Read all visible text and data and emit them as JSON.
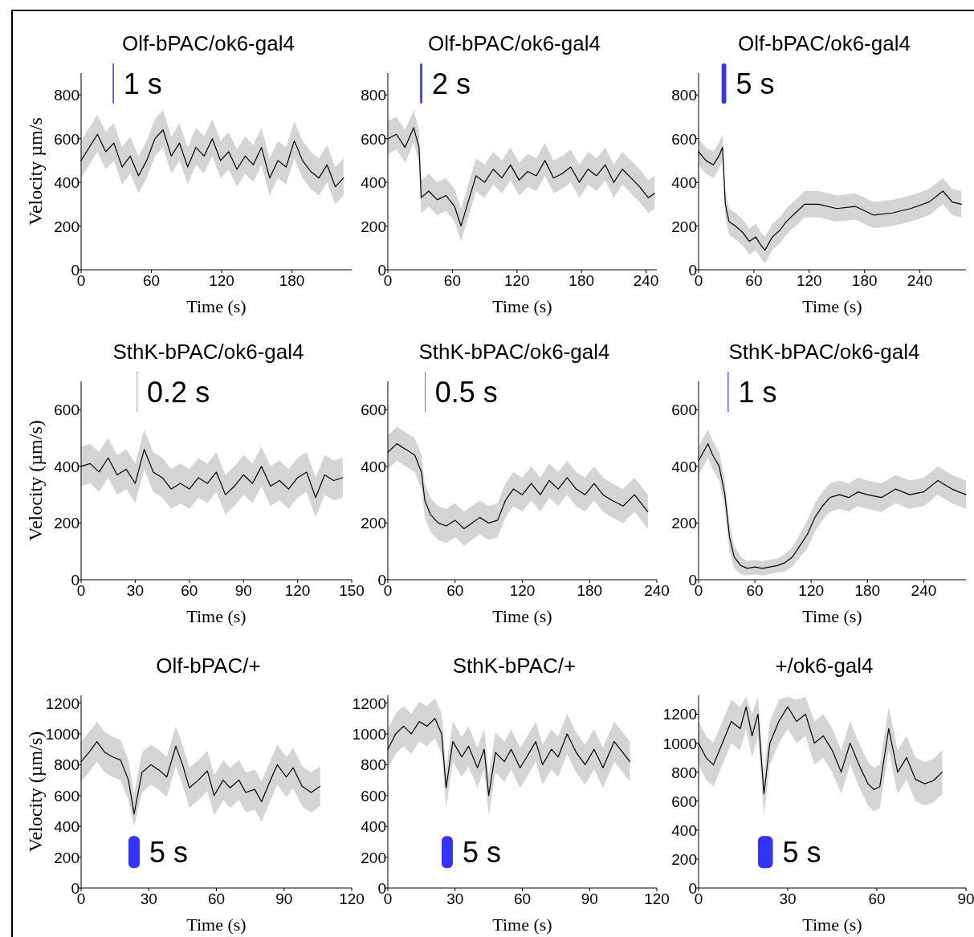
{
  "chart_data": [
    {
      "type": "line",
      "title": "Olf-bPAC/ok6-gal4",
      "xlabel": "Time (s)",
      "ylabel": "Velocity µm/s",
      "xlim": [
        0,
        231
      ],
      "xticks": [
        0,
        60,
        120,
        180
      ],
      "ylim": [
        0,
        900
      ],
      "yticks": [
        0,
        200,
        400,
        600,
        800
      ],
      "bands": [
        {
          "axis": "x",
          "from": 27,
          "to": 28,
          "label": "1 s",
          "color": "#3333ff"
        }
      ],
      "series": [
        {
          "color": "#000000",
          "x": [
            0,
            7,
            14,
            21,
            28,
            35,
            42,
            49,
            56,
            63,
            70,
            77,
            84,
            91,
            98,
            105,
            112,
            119,
            126,
            133,
            140,
            147,
            154,
            161,
            168,
            175,
            182,
            189,
            196,
            203,
            210,
            217,
            224
          ],
          "values": [
            500,
            560,
            620,
            540,
            580,
            470,
            520,
            430,
            500,
            600,
            640,
            520,
            580,
            470,
            560,
            520,
            600,
            500,
            540,
            460,
            520,
            480,
            560,
            420,
            500,
            470,
            590,
            500,
            450,
            420,
            480,
            380,
            420
          ],
          "lower": [
            420,
            480,
            540,
            460,
            500,
            390,
            440,
            350,
            420,
            520,
            560,
            440,
            500,
            390,
            480,
            440,
            520,
            420,
            460,
            380,
            440,
            400,
            480,
            340,
            420,
            390,
            510,
            420,
            370,
            340,
            400,
            300,
            340
          ],
          "upper": [
            590,
            650,
            710,
            630,
            670,
            560,
            610,
            520,
            590,
            690,
            730,
            610,
            670,
            560,
            650,
            610,
            690,
            590,
            630,
            550,
            610,
            570,
            650,
            510,
            590,
            560,
            680,
            590,
            540,
            510,
            570,
            470,
            510
          ]
        }
      ]
    },
    {
      "type": "line",
      "title": "Olf-bPAC/ok6-gal4",
      "xlabel": "Time (s)",
      "xlim": [
        0,
        250
      ],
      "xticks": [
        0,
        60,
        120,
        180,
        240
      ],
      "ylim": [
        0,
        900
      ],
      "yticks": [
        0,
        200,
        400,
        600,
        800
      ],
      "bands": [
        {
          "axis": "x",
          "from": 30,
          "to": 32,
          "label": "2 s",
          "color": "#3333ff"
        }
      ],
      "series": [
        {
          "color": "#000000",
          "x": [
            0,
            8,
            16,
            24,
            29,
            31,
            38,
            46,
            54,
            62,
            68,
            74,
            82,
            90,
            98,
            106,
            114,
            122,
            130,
            138,
            146,
            154,
            162,
            170,
            178,
            186,
            194,
            202,
            210,
            218,
            226,
            234,
            242,
            248
          ],
          "values": [
            600,
            620,
            560,
            650,
            560,
            330,
            360,
            320,
            340,
            290,
            200,
            300,
            430,
            400,
            460,
            420,
            480,
            410,
            450,
            430,
            500,
            420,
            440,
            470,
            400,
            460,
            430,
            480,
            400,
            460,
            420,
            380,
            330,
            350
          ],
          "lower": [
            530,
            550,
            490,
            580,
            490,
            260,
            290,
            250,
            270,
            220,
            130,
            230,
            360,
            330,
            390,
            350,
            410,
            340,
            380,
            360,
            430,
            350,
            370,
            400,
            330,
            390,
            360,
            410,
            330,
            390,
            350,
            310,
            260,
            280
          ],
          "upper": [
            680,
            700,
            640,
            730,
            640,
            410,
            440,
            400,
            420,
            370,
            280,
            380,
            510,
            480,
            540,
            500,
            560,
            490,
            530,
            510,
            580,
            500,
            520,
            550,
            480,
            540,
            510,
            560,
            480,
            540,
            500,
            460,
            410,
            430
          ]
        }
      ]
    },
    {
      "type": "line",
      "title": "Olf-bPAC/ok6-gal4",
      "xlabel": "Time (s)",
      "xlim": [
        0,
        290
      ],
      "xticks": [
        0,
        60,
        120,
        180,
        240
      ],
      "ylim": [
        0,
        900
      ],
      "yticks": [
        0,
        200,
        400,
        600,
        800
      ],
      "bands": [
        {
          "axis": "x",
          "from": 25,
          "to": 30,
          "label": "5 s",
          "color": "#3333ff"
        }
      ],
      "series": [
        {
          "color": "#000000",
          "x": [
            0,
            8,
            16,
            22,
            26,
            29,
            33,
            40,
            48,
            55,
            62,
            68,
            72,
            80,
            88,
            95,
            105,
            115,
            130,
            150,
            170,
            190,
            210,
            230,
            250,
            265,
            275,
            285
          ],
          "values": [
            540,
            500,
            480,
            520,
            560,
            300,
            220,
            200,
            170,
            130,
            150,
            110,
            90,
            150,
            180,
            220,
            260,
            300,
            300,
            280,
            290,
            250,
            260,
            280,
            310,
            360,
            310,
            300
          ],
          "lower": [
            480,
            440,
            420,
            460,
            500,
            240,
            160,
            140,
            110,
            70,
            90,
            50,
            30,
            90,
            120,
            160,
            200,
            240,
            240,
            220,
            230,
            190,
            200,
            220,
            250,
            300,
            250,
            240
          ],
          "upper": [
            600,
            560,
            540,
            580,
            620,
            360,
            280,
            260,
            230,
            190,
            210,
            170,
            150,
            210,
            240,
            280,
            320,
            360,
            360,
            340,
            350,
            310,
            320,
            340,
            370,
            420,
            370,
            360
          ]
        }
      ]
    },
    {
      "type": "line",
      "title": "SthK-bPAC/ok6-gal4",
      "xlabel": "Time (s)",
      "ylabel": "Velocity (µm/s)",
      "xlim": [
        0,
        150
      ],
      "xticks": [
        0,
        30,
        60,
        90,
        120,
        150
      ],
      "ylim": [
        0,
        700
      ],
      "yticks": [
        0,
        200,
        400,
        600
      ],
      "bands": [
        {
          "axis": "x",
          "from": 31,
          "to": 31.2,
          "label": "0.2 s",
          "color": "#3333ff"
        }
      ],
      "series": [
        {
          "color": "#000000",
          "x": [
            0,
            5,
            10,
            15,
            20,
            25,
            30,
            35,
            40,
            45,
            50,
            55,
            60,
            65,
            70,
            75,
            80,
            85,
            90,
            95,
            100,
            105,
            110,
            115,
            120,
            125,
            130,
            135,
            140,
            145
          ],
          "values": [
            400,
            410,
            380,
            430,
            370,
            390,
            340,
            460,
            380,
            360,
            320,
            340,
            320,
            360,
            340,
            380,
            300,
            330,
            370,
            340,
            400,
            330,
            350,
            320,
            360,
            380,
            290,
            370,
            350,
            360
          ],
          "lower": [
            330,
            340,
            310,
            360,
            300,
            320,
            270,
            390,
            310,
            290,
            250,
            270,
            250,
            290,
            270,
            310,
            230,
            260,
            300,
            270,
            330,
            260,
            280,
            250,
            290,
            310,
            220,
            300,
            280,
            290
          ],
          "upper": [
            470,
            480,
            450,
            500,
            440,
            460,
            410,
            530,
            450,
            430,
            390,
            410,
            390,
            430,
            410,
            450,
            370,
            400,
            440,
            410,
            470,
            400,
            420,
            390,
            430,
            450,
            360,
            440,
            420,
            430
          ]
        }
      ]
    },
    {
      "type": "line",
      "title": "SthK-bPAC/ok6-gal4",
      "xlabel": "Time (s)",
      "xlim": [
        0,
        240
      ],
      "xticks": [
        0,
        60,
        120,
        180,
        240
      ],
      "ylim": [
        0,
        700
      ],
      "yticks": [
        0,
        200,
        400,
        600
      ],
      "bands": [
        {
          "axis": "x",
          "from": 33,
          "to": 33.5,
          "label": "0.5 s",
          "color": "#3333ff"
        }
      ],
      "series": [
        {
          "color": "#000000",
          "x": [
            0,
            8,
            16,
            24,
            30,
            33,
            38,
            45,
            52,
            60,
            68,
            75,
            82,
            90,
            98,
            105,
            112,
            120,
            128,
            136,
            144,
            152,
            160,
            168,
            176,
            184,
            192,
            200,
            210,
            220,
            232
          ],
          "values": [
            450,
            480,
            460,
            440,
            380,
            280,
            230,
            200,
            190,
            210,
            180,
            200,
            220,
            200,
            210,
            280,
            320,
            300,
            340,
            300,
            350,
            320,
            360,
            320,
            300,
            340,
            300,
            280,
            260,
            300,
            240
          ],
          "lower": [
            390,
            420,
            400,
            380,
            320,
            220,
            170,
            140,
            130,
            150,
            120,
            140,
            160,
            140,
            150,
            220,
            260,
            240,
            280,
            240,
            290,
            260,
            300,
            260,
            240,
            280,
            240,
            220,
            200,
            240,
            180
          ],
          "upper": [
            510,
            540,
            520,
            500,
            440,
            340,
            290,
            260,
            250,
            270,
            240,
            260,
            280,
            260,
            270,
            340,
            380,
            360,
            400,
            360,
            410,
            380,
            420,
            380,
            360,
            400,
            360,
            340,
            320,
            360,
            300
          ]
        }
      ]
    },
    {
      "type": "line",
      "title": "SthK-bPAC/ok6-gal4",
      "xlabel": "Time (s)",
      "xlim": [
        0,
        285
      ],
      "xticks": [
        0,
        60,
        120,
        180,
        240
      ],
      "ylim": [
        0,
        700
      ],
      "yticks": [
        0,
        200,
        400,
        600
      ],
      "bands": [
        {
          "axis": "x",
          "from": 31,
          "to": 32,
          "label": "1 s",
          "color": "#3333ff"
        }
      ],
      "series": [
        {
          "color": "#000000",
          "x": [
            0,
            5,
            10,
            15,
            22,
            28,
            33,
            38,
            45,
            52,
            60,
            68,
            76,
            84,
            92,
            100,
            108,
            116,
            124,
            132,
            140,
            150,
            160,
            170,
            180,
            195,
            210,
            225,
            240,
            255,
            270,
            285
          ],
          "values": [
            420,
            450,
            480,
            440,
            400,
            300,
            150,
            80,
            50,
            40,
            45,
            40,
            45,
            50,
            60,
            80,
            120,
            160,
            220,
            260,
            290,
            300,
            290,
            310,
            300,
            290,
            320,
            300,
            310,
            350,
            320,
            300
          ],
          "lower": [
            370,
            400,
            430,
            390,
            350,
            250,
            100,
            40,
            20,
            15,
            20,
            15,
            20,
            25,
            30,
            45,
            80,
            110,
            170,
            210,
            240,
            250,
            240,
            260,
            250,
            240,
            270,
            250,
            260,
            300,
            270,
            250
          ],
          "upper": [
            470,
            500,
            530,
            490,
            450,
            350,
            200,
            120,
            80,
            65,
            70,
            65,
            70,
            75,
            90,
            115,
            160,
            210,
            270,
            310,
            340,
            350,
            340,
            360,
            350,
            340,
            370,
            350,
            360,
            400,
            370,
            350
          ]
        }
      ]
    },
    {
      "type": "line",
      "title": "Olf-bPAC/+",
      "xlabel": "Time  (s)",
      "ylabel": "Velocity (µm/s)",
      "xlim": [
        0,
        120
      ],
      "xticks": [
        0,
        30,
        60,
        90,
        120
      ],
      "ylim": [
        0,
        1250
      ],
      "yticks": [
        0,
        200,
        400,
        600,
        800,
        1000,
        1200
      ],
      "bands": [
        {
          "axis": "x",
          "from": 21,
          "to": 26,
          "label": "5 s",
          "color": "#3333ff"
        }
      ],
      "series": [
        {
          "color": "#000000",
          "x": [
            0,
            3.5,
            7,
            10.5,
            14,
            17.5,
            21,
            23.5,
            27,
            31,
            35,
            38,
            42,
            45,
            48,
            52,
            56,
            59,
            63,
            66,
            70,
            73,
            77,
            80,
            84,
            87,
            91,
            94,
            98,
            102,
            106
          ],
          "values": [
            820,
            880,
            950,
            880,
            850,
            830,
            700,
            480,
            750,
            800,
            760,
            720,
            920,
            800,
            650,
            700,
            760,
            600,
            700,
            650,
            700,
            620,
            640,
            560,
            700,
            800,
            720,
            780,
            660,
            620,
            660
          ],
          "lower": [
            690,
            750,
            820,
            750,
            720,
            700,
            570,
            400,
            620,
            670,
            630,
            590,
            790,
            670,
            520,
            570,
            630,
            470,
            570,
            520,
            570,
            490,
            510,
            430,
            570,
            670,
            590,
            650,
            530,
            490,
            530
          ],
          "upper": [
            950,
            1010,
            1080,
            1010,
            980,
            960,
            830,
            610,
            880,
            930,
            890,
            850,
            1050,
            930,
            780,
            830,
            890,
            730,
            830,
            780,
            830,
            750,
            770,
            690,
            830,
            930,
            850,
            910,
            790,
            750,
            790
          ]
        }
      ]
    },
    {
      "type": "line",
      "title": "SthK-bPAC/+",
      "xlabel": "Time (s)",
      "xlim": [
        0,
        120
      ],
      "xticks": [
        0,
        30,
        60,
        90,
        120
      ],
      "ylim": [
        0,
        1250
      ],
      "yticks": [
        0,
        200,
        400,
        600,
        800,
        1000,
        1200
      ],
      "bands": [
        {
          "axis": "x",
          "from": 24,
          "to": 29,
          "label": "5 s",
          "color": "#3333ff"
        }
      ],
      "series": [
        {
          "color": "#000000",
          "x": [
            0,
            3.5,
            7,
            10.5,
            14,
            17.5,
            21,
            24,
            26,
            29,
            33,
            36,
            40,
            43,
            45,
            48,
            52,
            55,
            59,
            62,
            66,
            69,
            73,
            76,
            80,
            84,
            88,
            92,
            96,
            101,
            108
          ],
          "values": [
            900,
            1000,
            1050,
            1000,
            1080,
            1050,
            1100,
            1000,
            650,
            950,
            850,
            920,
            780,
            900,
            600,
            880,
            820,
            900,
            780,
            850,
            950,
            800,
            900,
            850,
            1000,
            880,
            800,
            900,
            780,
            950,
            820
          ],
          "lower": [
            770,
            870,
            920,
            870,
            950,
            920,
            970,
            870,
            520,
            820,
            720,
            790,
            650,
            770,
            470,
            750,
            690,
            770,
            650,
            720,
            820,
            670,
            770,
            720,
            870,
            750,
            670,
            770,
            650,
            820,
            690
          ],
          "upper": [
            1030,
            1130,
            1180,
            1130,
            1210,
            1180,
            1230,
            1130,
            780,
            1080,
            980,
            1050,
            910,
            1030,
            730,
            1010,
            950,
            1030,
            910,
            980,
            1080,
            930,
            1030,
            980,
            1130,
            1010,
            930,
            1030,
            910,
            1080,
            950
          ]
        }
      ]
    },
    {
      "type": "line",
      "title": "+/ok6-gal4",
      "xlabel": "Time (s)",
      "xlim": [
        0,
        90
      ],
      "xticks": [
        0,
        30,
        60,
        90
      ],
      "ylim": [
        0,
        1330
      ],
      "yticks": [
        0,
        200,
        400,
        600,
        800,
        1000,
        1200
      ],
      "bands": [
        {
          "axis": "x",
          "from": 20,
          "to": 25,
          "label": "5 s",
          "color": "#3333ff"
        }
      ],
      "series": [
        {
          "color": "#000000",
          "x": [
            0,
            2.5,
            5,
            8,
            11,
            14,
            16,
            18,
            20,
            22,
            24,
            27,
            30,
            33,
            36,
            39,
            42,
            45,
            48,
            51,
            54,
            57,
            59,
            61,
            64,
            67,
            70,
            73,
            76,
            79,
            82
          ],
          "values": [
            1000,
            900,
            850,
            1000,
            1150,
            1100,
            1250,
            1050,
            1200,
            650,
            1000,
            1150,
            1250,
            1150,
            1200,
            1000,
            1050,
            950,
            800,
            1000,
            850,
            720,
            680,
            700,
            1100,
            800,
            900,
            750,
            720,
            740,
            800
          ],
          "lower": [
            850,
            750,
            700,
            850,
            1000,
            950,
            1100,
            900,
            1050,
            500,
            850,
            1000,
            1100,
            1000,
            1050,
            850,
            900,
            800,
            650,
            850,
            700,
            570,
            530,
            550,
            950,
            650,
            750,
            600,
            570,
            590,
            650
          ],
          "upper": [
            1150,
            1050,
            1000,
            1150,
            1300,
            1250,
            1320,
            1200,
            1320,
            800,
            1150,
            1300,
            1320,
            1300,
            1320,
            1150,
            1200,
            1100,
            950,
            1150,
            1000,
            870,
            830,
            850,
            1250,
            950,
            1050,
            900,
            870,
            890,
            950
          ]
        }
      ]
    }
  ]
}
